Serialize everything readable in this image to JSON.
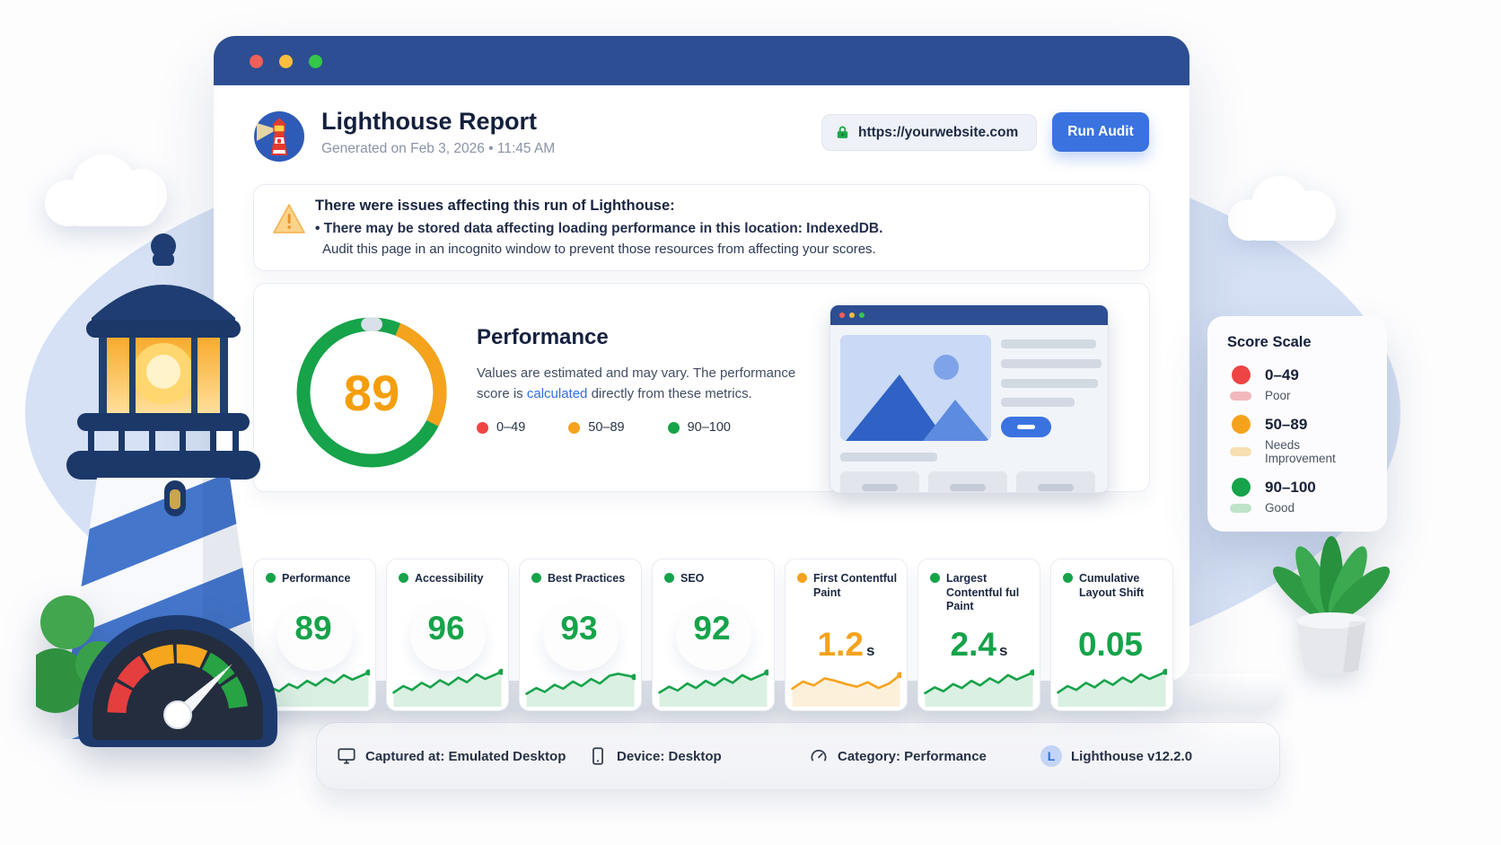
{
  "window": {
    "header": {
      "title": "Lighthouse Report",
      "subtitle": "Generated on Feb 3, 2026 • 11:45 AM",
      "url": "https://yourwebsite.com",
      "run_button": "Run Audit"
    },
    "warning": {
      "title": "There were issues affecting this run of Lighthouse:",
      "line1": "• There may be stored data affecting loading performance in this location: IndexedDB.",
      "line2": "Audit this page in an incognito window to prevent those resources from affecting your scores."
    },
    "performance": {
      "score": "89",
      "title": "Performance",
      "desc_before": "Values are estimated and may vary. The performance score is ",
      "link": "calculated",
      "desc_after": " directly from these metrics.",
      "legend": [
        {
          "label": "0–49",
          "color": "#ef4444"
        },
        {
          "label": "50–89",
          "color": "#f5a31d"
        },
        {
          "label": "90–100",
          "color": "#16a34a"
        }
      ]
    },
    "metric_cards": [
      {
        "label": "Performance",
        "value": "89",
        "unit": "",
        "color": "#16a34a",
        "spark": [
          [
            0,
            28
          ],
          [
            9,
            46
          ],
          [
            17,
            34
          ],
          [
            26,
            56
          ],
          [
            34,
            44
          ],
          [
            43,
            66
          ],
          [
            51,
            52
          ],
          [
            60,
            74
          ],
          [
            68,
            60
          ],
          [
            77,
            84
          ],
          [
            85,
            70
          ],
          [
            100,
            92
          ]
        ]
      },
      {
        "label": "Accessibility",
        "value": "96",
        "unit": "",
        "color": "#16a34a",
        "spark": [
          [
            0,
            30
          ],
          [
            9,
            50
          ],
          [
            17,
            38
          ],
          [
            26,
            60
          ],
          [
            34,
            46
          ],
          [
            43,
            68
          ],
          [
            51,
            54
          ],
          [
            60,
            76
          ],
          [
            68,
            62
          ],
          [
            77,
            86
          ],
          [
            85,
            72
          ],
          [
            100,
            94
          ]
        ]
      },
      {
        "label": "Best Practices",
        "value": "93",
        "unit": "",
        "color": "#16a34a",
        "spark": [
          [
            0,
            26
          ],
          [
            9,
            44
          ],
          [
            17,
            32
          ],
          [
            26,
            54
          ],
          [
            34,
            42
          ],
          [
            43,
            64
          ],
          [
            51,
            50
          ],
          [
            60,
            72
          ],
          [
            68,
            58
          ],
          [
            77,
            82
          ],
          [
            85,
            88
          ],
          [
            100,
            78
          ]
        ]
      },
      {
        "label": "SEO",
        "value": "92",
        "unit": "",
        "color": "#16a34a",
        "spark": [
          [
            0,
            30
          ],
          [
            9,
            48
          ],
          [
            17,
            36
          ],
          [
            26,
            58
          ],
          [
            34,
            44
          ],
          [
            43,
            66
          ],
          [
            51,
            52
          ],
          [
            60,
            74
          ],
          [
            68,
            60
          ],
          [
            77,
            84
          ],
          [
            85,
            70
          ],
          [
            100,
            92
          ]
        ]
      },
      {
        "label": "First Contentful Paint",
        "value": "1.2",
        "unit": "s",
        "color": "#f5a31d",
        "spark": [
          [
            0,
            42
          ],
          [
            10,
            64
          ],
          [
            20,
            52
          ],
          [
            30,
            74
          ],
          [
            40,
            66
          ],
          [
            50,
            56
          ],
          [
            60,
            48
          ],
          [
            70,
            62
          ],
          [
            80,
            44
          ],
          [
            90,
            58
          ],
          [
            100,
            84
          ]
        ]
      },
      {
        "label": "Largest Contentful ful Paint",
        "value": "2.4",
        "unit": "s",
        "color": "#16a34a",
        "spark": [
          [
            0,
            28
          ],
          [
            9,
            46
          ],
          [
            17,
            34
          ],
          [
            26,
            56
          ],
          [
            34,
            44
          ],
          [
            43,
            66
          ],
          [
            51,
            52
          ],
          [
            60,
            74
          ],
          [
            68,
            60
          ],
          [
            77,
            84
          ],
          [
            85,
            70
          ],
          [
            100,
            92
          ]
        ]
      },
      {
        "label": "Cumulative Layout Shift",
        "value": "0.05",
        "unit": "",
        "color": "#16a34a",
        "spark": [
          [
            0,
            30
          ],
          [
            9,
            50
          ],
          [
            17,
            38
          ],
          [
            26,
            60
          ],
          [
            34,
            46
          ],
          [
            43,
            68
          ],
          [
            51,
            54
          ],
          [
            60,
            76
          ],
          [
            68,
            62
          ],
          [
            77,
            86
          ],
          [
            85,
            72
          ],
          [
            100,
            94
          ]
        ]
      }
    ],
    "footer": {
      "items": [
        {
          "icon": "monitor-icon",
          "text": "Captured at: Emulated Desktop"
        },
        {
          "icon": "device-icon",
          "text": "Device: Desktop"
        },
        {
          "icon": "gauge-icon",
          "text": "Category: Performance"
        },
        {
          "icon": "lighthouse-badge-icon",
          "badge": "L",
          "text": "Lighthouse v12.2.0"
        }
      ]
    }
  },
  "score_scale": {
    "title": "Score Scale",
    "items": [
      {
        "range": "0–49",
        "label": "Poor",
        "color": "#ef4444",
        "tint": "#f3b8bb"
      },
      {
        "range": "50–89",
        "label": "Needs Improvement",
        "color": "#f5a31d",
        "tint": "#f6dfb0"
      },
      {
        "range": "90–100",
        "label": "Good",
        "color": "#16a34a",
        "tint": "#bfe3c8"
      }
    ]
  }
}
